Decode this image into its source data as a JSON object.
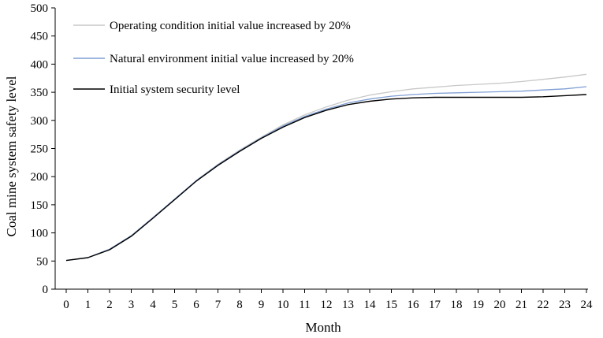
{
  "chart_data": {
    "type": "line",
    "title": "",
    "xlabel": "Month",
    "ylabel": "Coal mine system safety level",
    "xlim": [
      0,
      24
    ],
    "ylim": [
      0,
      500
    ],
    "x_ticks": [
      0,
      1,
      2,
      3,
      4,
      5,
      6,
      7,
      8,
      9,
      10,
      11,
      12,
      13,
      14,
      15,
      16,
      17,
      18,
      19,
      20,
      21,
      22,
      23,
      24
    ],
    "y_ticks": [
      0,
      50,
      100,
      150,
      200,
      250,
      300,
      350,
      400,
      450,
      500
    ],
    "grid": false,
    "legend_position": "top-left",
    "x": [
      0,
      1,
      2,
      3,
      4,
      5,
      6,
      7,
      8,
      9,
      10,
      11,
      12,
      13,
      14,
      15,
      16,
      17,
      18,
      19,
      20,
      21,
      22,
      23,
      24
    ],
    "series": [
      {
        "name": "Operating condition initial value increased by 20%",
        "color": "#c8c8c8",
        "values": [
          51,
          56,
          71,
          95,
          127,
          160,
          193,
          222,
          247,
          270,
          292,
          310,
          324,
          336,
          345,
          351,
          356,
          359,
          362,
          364,
          366,
          369,
          373,
          377,
          382
        ]
      },
      {
        "name": "Natural environment initial value increased by 20%",
        "color": "#7f9fd4",
        "values": [
          51,
          56,
          71,
          95,
          127,
          160,
          193,
          221,
          246,
          269,
          290,
          307,
          320,
          331,
          338,
          343,
          346,
          348,
          349,
          350,
          351,
          352,
          354,
          356,
          360
        ]
      },
      {
        "name": "Initial system security level",
        "color": "#000000",
        "values": [
          51,
          56,
          70,
          94,
          126,
          159,
          192,
          220,
          245,
          268,
          288,
          305,
          318,
          328,
          334,
          338,
          340,
          341,
          341,
          341,
          341,
          341,
          342,
          344,
          346
        ]
      }
    ]
  }
}
